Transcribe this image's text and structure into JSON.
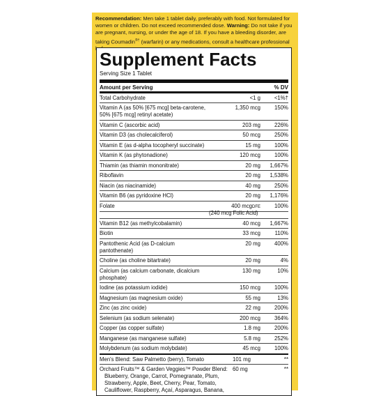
{
  "warning": {
    "heading": "Recommendation:",
    "text1": " Men take 1 tablet daily, preferably with food. Not formulated for women or children. Do not exceed recommended dose. ",
    "warn_heading": "Warning:",
    "text2": " Do not take if you are pregnant, nursing, or under the age of 18. If you have a bleeding disorder, are taking Coumadin",
    "reg": "®†",
    "text3": " (warfarin) or any medications, consult a healthcare professional before use."
  },
  "facts": {
    "title": "Supplement Facts",
    "serving": "Serving Size 1 Tablet",
    "header_amount": "Amount per Serving",
    "header_dv": "% DV",
    "rows": [
      {
        "name": "Total Carbohydrate",
        "amount": "<1 g",
        "dv": "<1%†"
      },
      {
        "name": "Vitamin A (as 50% [675 mcg] beta-carotene, 50% [675 mcg] retinyl acetate)",
        "amount": "1,350 mcg",
        "dv": "150%"
      },
      {
        "name": "Vitamin C (ascorbic acid)",
        "amount": "203 mg",
        "dv": "226%"
      },
      {
        "name": "Vitamin D3 (as cholecalciferol)",
        "amount": "50 mcg",
        "dv": "250%"
      },
      {
        "name": "Vitamin E (as d-alpha tocopheryl succinate)",
        "amount": "15 mg",
        "dv": "100%"
      },
      {
        "name": "Vitamin K (as phytonadione)",
        "amount": "120 mcg",
        "dv": "100%"
      },
      {
        "name": "Thiamin (as thiamin mononitrate)",
        "amount": "20 mg",
        "dv": "1,667%"
      },
      {
        "name": "Riboflavin",
        "amount": "20 mg",
        "dv": "1,538%"
      },
      {
        "name": "Niacin (as niacinamide)",
        "amount": "40 mg",
        "dv": "250%"
      },
      {
        "name": "Vitamin B6 (as pyridoxine HCl)",
        "amount": "20 mg",
        "dv": "1,176%"
      }
    ],
    "folate": {
      "name": "Folate",
      "amount": "400 mcg",
      "unit": "DFE",
      "sub": "(240 mcg Folic Acid)",
      "dv": "100%"
    },
    "rows2": [
      {
        "name": "Vitamin B12 (as methylcobalamin)",
        "amount": "40 mcg",
        "dv": "1,667%"
      },
      {
        "name": "Biotin",
        "amount": "33 mcg",
        "dv": "110%"
      },
      {
        "name": "Pantothenic Acid (as D-calcium pantothenate)",
        "amount": "20 mg",
        "dv": "400%"
      },
      {
        "name": "Choline (as choline bitartrate)",
        "amount": "20 mg",
        "dv": "4%"
      },
      {
        "name": "Calcium (as calcium carbonate, dicalcium phosphate)",
        "amount": "130 mg",
        "dv": "10%"
      },
      {
        "name": "Iodine (as potassium iodide)",
        "amount": "150 mcg",
        "dv": "100%"
      },
      {
        "name": "Magnesium (as magnesium oxide)",
        "amount": "55 mg",
        "dv": "13%"
      },
      {
        "name": "Zinc (as zinc oxide)",
        "amount": "22 mg",
        "dv": "200%"
      },
      {
        "name": "Selenium (as sodium selenate)",
        "amount": "200 mcg",
        "dv": "364%"
      },
      {
        "name": "Copper (as copper sulfate)",
        "amount": "1.8 mg",
        "dv": "200%"
      },
      {
        "name": "Manganese (as manganese sulfate)",
        "amount": "5.8 mg",
        "dv": "252%"
      },
      {
        "name": "Molybdenum (as sodium molybdate)",
        "amount": "45 mcg",
        "dv": "100%"
      }
    ],
    "blend1": {
      "name": "Men's Blend: Saw Palmetto (berry), Tomato",
      "amount": "101 mg",
      "dv": "**"
    },
    "blend2": {
      "name": "Orchard Fruits™ & Garden Veggies™ Powder Blend:",
      "amount": "60 mg",
      "dv": "**",
      "list": "Blueberry, Orange, Carrot, Pomegranate, Plum, Strawberry, Apple, Beet, Cherry, Pear, Tomato, Cauliflower, Raspberry, Açaí, Asparagus, Banana,"
    }
  }
}
